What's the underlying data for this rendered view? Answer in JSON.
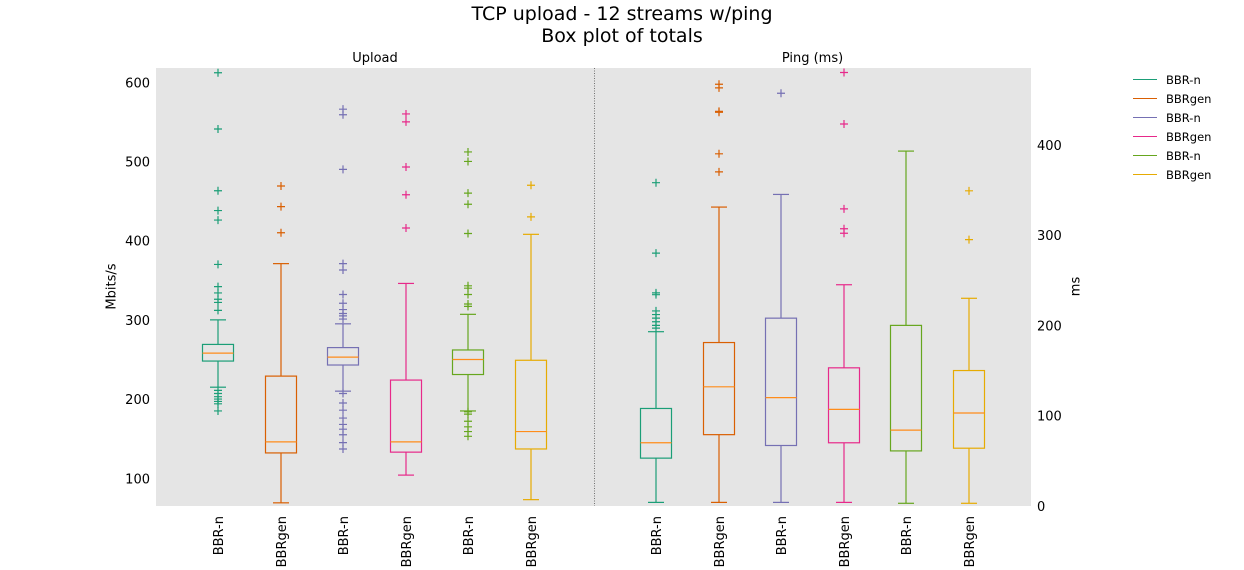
{
  "header": {
    "title": "TCP upload - 12 streams w/ping",
    "subtitle": "Box plot of totals"
  },
  "colors": {
    "plot_bg": "#e5e5e5",
    "median": "#ff8c1a",
    "series": [
      "#1b9e77",
      "#d95f02",
      "#7570b3",
      "#e7298a",
      "#66a61e",
      "#e6ab02"
    ]
  },
  "legend": {
    "placement": "top-right, outside plot",
    "items": [
      {
        "label": "BBR-n",
        "color": "#1b9e77"
      },
      {
        "label": "BBRgen",
        "color": "#d95f02"
      },
      {
        "label": "BBR-n",
        "color": "#7570b3"
      },
      {
        "label": "BBRgen",
        "color": "#e7298a"
      },
      {
        "label": "BBR-n",
        "color": "#66a61e"
      },
      {
        "label": "BBRgen",
        "color": "#e6ab02"
      }
    ]
  },
  "chart_data": [
    {
      "type": "box",
      "panel_title": "Upload",
      "ylabel": "Mbits/s",
      "ylim": [
        65,
        618
      ],
      "yticks": [
        100,
        200,
        300,
        400,
        500,
        600
      ],
      "grid": false,
      "categories": [
        "BBR-n",
        "BBRgen",
        "BBR-n",
        "BBRgen",
        "BBR-n",
        "BBRgen"
      ],
      "boxes": [
        {
          "label": "BBR-n",
          "color": "#1b9e77",
          "whislo": 215,
          "q1": 248,
          "med": 258,
          "q3": 269,
          "whishi": 300,
          "fliers": [
            612,
            541,
            463,
            438,
            426,
            370,
            342,
            334,
            326,
            322,
            312,
            211,
            207,
            203,
            200,
            197,
            194,
            185
          ]
        },
        {
          "label": "BBRgen",
          "color": "#d95f02",
          "whislo": 69,
          "q1": 132,
          "med": 146,
          "q3": 229,
          "whishi": 371,
          "fliers": [
            469,
            443,
            410
          ]
        },
        {
          "label": "BBR-n",
          "color": "#7570b3",
          "whislo": 210,
          "q1": 243,
          "med": 253,
          "q3": 265,
          "whishi": 295,
          "fliers": [
            566,
            559,
            490,
            371,
            363,
            332,
            321,
            313,
            308,
            305,
            301,
            207,
            195,
            186,
            176,
            168,
            162,
            155,
            145,
            137
          ]
        },
        {
          "label": "BBRgen",
          "color": "#e7298a",
          "whislo": 104,
          "q1": 133,
          "med": 146,
          "q3": 224,
          "whishi": 346,
          "fliers": [
            560,
            550,
            493,
            458,
            416
          ]
        },
        {
          "label": "BBR-n",
          "color": "#66a61e",
          "whislo": 185,
          "q1": 231,
          "med": 250,
          "q3": 262,
          "whishi": 307,
          "fliers": [
            512,
            500,
            460,
            446,
            409,
            343,
            340,
            332,
            320,
            317,
            184,
            181,
            172,
            165,
            159,
            153
          ]
        },
        {
          "label": "BBRgen",
          "color": "#e6ab02",
          "whislo": 73,
          "q1": 137,
          "med": 159,
          "q3": 249,
          "whishi": 408,
          "fliers": [
            470,
            430
          ]
        }
      ]
    },
    {
      "type": "box",
      "panel_title": "Ping (ms)",
      "ylabel": "ms",
      "ylim": [
        0,
        485
      ],
      "yticks": [
        0,
        100,
        200,
        300,
        400
      ],
      "grid": false,
      "categories": [
        "BBR-n",
        "BBRgen",
        "BBR-n",
        "BBRgen",
        "BBR-n",
        "BBRgen"
      ],
      "boxes": [
        {
          "label": "BBR-n",
          "color": "#1b9e77",
          "whislo": 4,
          "q1": 53,
          "med": 70,
          "q3": 108,
          "whishi": 193,
          "fliers": [
            358,
            280,
            236,
            234,
            216,
            212,
            208,
            204,
            200,
            197
          ]
        },
        {
          "label": "BBRgen",
          "color": "#d95f02",
          "whislo": 4,
          "q1": 79,
          "med": 132,
          "q3": 181,
          "whishi": 331,
          "fliers": [
            467,
            463,
            437,
            436,
            390,
            370
          ]
        },
        {
          "label": "BBR-n",
          "color": "#7570b3",
          "whislo": 4,
          "q1": 67,
          "med": 120,
          "q3": 208,
          "whishi": 345,
          "fliers": [
            457
          ]
        },
        {
          "label": "BBRgen",
          "color": "#e7298a",
          "whislo": 4,
          "q1": 70,
          "med": 107,
          "q3": 153,
          "whishi": 245,
          "fliers": [
            480,
            423,
            329,
            307,
            302
          ]
        },
        {
          "label": "BBR-n",
          "color": "#66a61e",
          "whislo": 3,
          "q1": 61,
          "med": 84,
          "q3": 200,
          "whishi": 393,
          "fliers": []
        },
        {
          "label": "BBRgen",
          "color": "#e6ab02",
          "whislo": 3,
          "q1": 64,
          "med": 103,
          "q3": 150,
          "whishi": 230,
          "fliers": [
            349,
            295
          ]
        }
      ]
    }
  ]
}
